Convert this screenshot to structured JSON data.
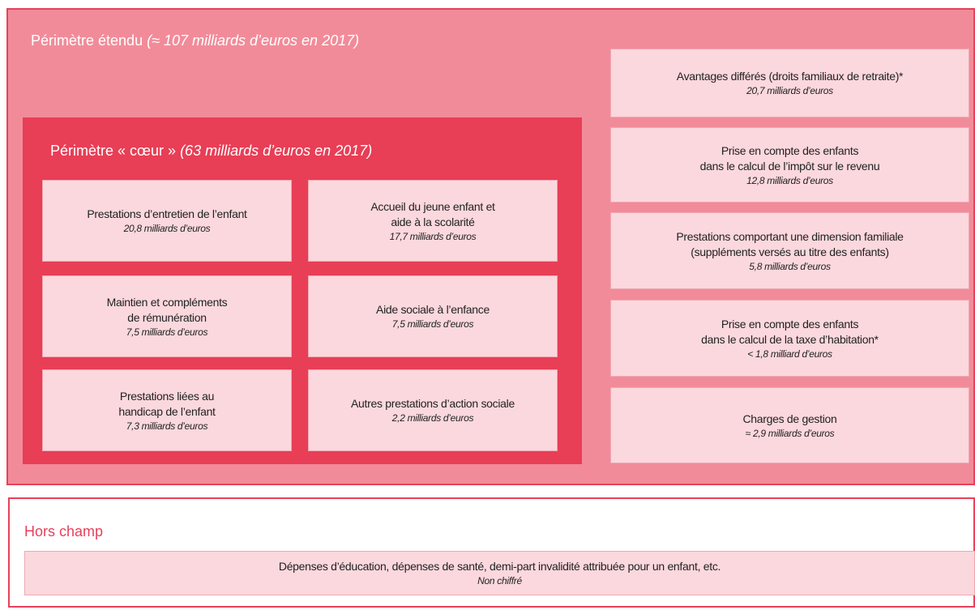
{
  "extended": {
    "label": "Périmètre étendu",
    "detail": "(≈ 107 milliards d’euros en 2017)"
  },
  "core": {
    "label": "Périmètre « cœur »",
    "detail": "(63 milliards d’euros en 2017)",
    "items": [
      {
        "lines": [
          "Prestations d’entretien de l’enfant"
        ],
        "amount": "20,8 milliards d’euros"
      },
      {
        "lines": [
          "Accueil du jeune enfant et",
          "aide à la scolarité"
        ],
        "amount": "17,7 milliards d’euros"
      },
      {
        "lines": [
          "Maintien et compléments",
          "de rémunération"
        ],
        "amount": "7,5 milliards d’euros"
      },
      {
        "lines": [
          "Aide sociale à l’enfance"
        ],
        "amount": "7,5 milliards d’euros"
      },
      {
        "lines": [
          "Prestations liées au",
          "handicap de l’enfant"
        ],
        "amount": "7,3 milliards d’euros"
      },
      {
        "lines": [
          "Autres prestations d’action sociale"
        ],
        "amount": "2,2 milliards d’euros"
      }
    ]
  },
  "extended_items": [
    {
      "lines": [
        "Avantages différés (droits familiaux de retraite)*"
      ],
      "amount": "20,7 milliards d’euros"
    },
    {
      "lines": [
        "Prise en compte des enfants",
        "dans le calcul de l’impôt sur le revenu"
      ],
      "amount": "12,8 milliards d’euros"
    },
    {
      "lines": [
        "Prestations comportant une dimension familiale",
        "(suppléments versés au titre  des enfants)"
      ],
      "amount": "5,8 milliards d’euros"
    },
    {
      "lines": [
        "Prise en compte des enfants",
        "dans le calcul de la taxe d’habitation*"
      ],
      "amount": "< 1,8 milliard d’euros"
    },
    {
      "lines": [
        "Charges de gestion"
      ],
      "amount": "≈ 2,9 milliards d’euros"
    }
  ],
  "out_of_scope": {
    "label": "Hors champ",
    "item": {
      "lines": [
        "Dépenses d’éducation, dépenses de santé, demi-part invalidité attribuée pour un enfant,  etc."
      ],
      "amount": "Non chiffré"
    }
  }
}
